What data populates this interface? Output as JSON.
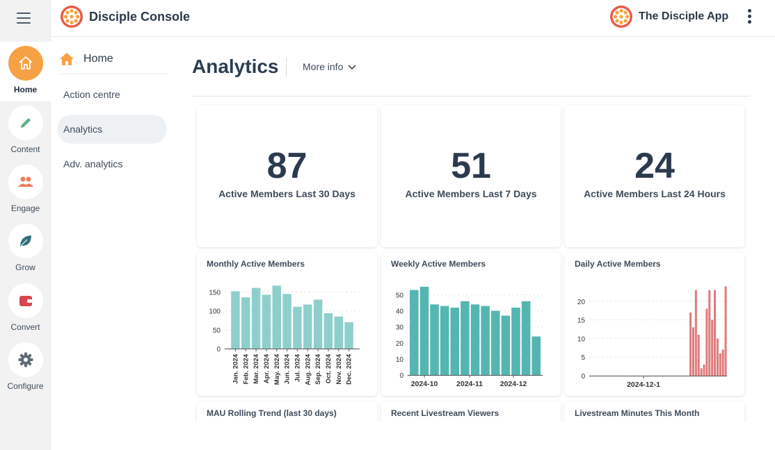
{
  "rail": {
    "items": [
      {
        "label": "Home",
        "icon": "home-icon"
      },
      {
        "label": "Content",
        "icon": "pencil-icon"
      },
      {
        "label": "Engage",
        "icon": "people-icon"
      },
      {
        "label": "Grow",
        "icon": "leaf-icon"
      },
      {
        "label": "Convert",
        "icon": "wallet-icon"
      },
      {
        "label": "Configure",
        "icon": "gear-icon"
      }
    ]
  },
  "header": {
    "console_title": "Disciple Console",
    "app_title": "The Disciple App"
  },
  "subnav": {
    "home_label": "Home",
    "items": [
      "Action centre",
      "Analytics",
      "Adv. analytics"
    ]
  },
  "page": {
    "title": "Analytics",
    "more_info_label": "More info"
  },
  "kpis": [
    {
      "value": "87",
      "label": "Active Members Last 30 Days"
    },
    {
      "value": "51",
      "label": "Active Members Last 7 Days"
    },
    {
      "value": "24",
      "label": "Active Members Last 24 Hours"
    }
  ],
  "bottom_cards": {
    "titles": [
      "MAU Rolling Trend (last 30 days)",
      "Recent Livestream Viewers",
      "Livestream Minutes This Month"
    ]
  },
  "colors": {
    "accent_orange": "#f6a144",
    "mau_bar": "#8ecfcc",
    "wau_bar": "#55b5b1",
    "dau_bar": "#e07b7c"
  },
  "chart_data": [
    {
      "type": "bar",
      "title": "Monthly Active Members",
      "categories": [
        "Jan. 2024",
        "Feb. 2024",
        "Mar. 2024",
        "Apr. 2024",
        "May. 2024",
        "Jun. 2024",
        "Jul. 2024",
        "Aug. 2024",
        "Sep. 2024",
        "Oct. 2024",
        "Nov. 2024",
        "Dec. 2024"
      ],
      "values": [
        152,
        136,
        161,
        143,
        167,
        145,
        111,
        117,
        130,
        94,
        85,
        70
      ],
      "ylim": [
        0,
        175
      ],
      "yticks": [
        0,
        50,
        100,
        150
      ]
    },
    {
      "type": "bar",
      "title": "Weekly Active Members",
      "x_tick_labels": [
        "2024-10",
        "2024-11",
        "2024-12"
      ],
      "values": [
        53,
        55,
        44,
        43,
        42,
        46,
        44,
        43,
        40,
        37,
        42,
        46,
        24
      ],
      "ylim": [
        0,
        58
      ],
      "yticks": [
        0,
        10,
        20,
        30,
        40,
        50
      ]
    },
    {
      "type": "bar",
      "title": "Daily Active Members",
      "x_tick_labels": [
        "2024-12-1"
      ],
      "values": [
        0,
        0,
        0,
        0,
        0,
        0,
        0,
        0,
        0,
        0,
        0,
        0,
        0,
        0,
        0,
        0,
        0,
        0,
        0,
        0,
        0,
        0,
        0,
        0,
        0,
        0,
        0,
        0,
        0,
        0,
        0,
        0,
        0,
        0,
        0,
        0,
        0,
        17,
        13,
        23,
        11,
        2,
        3,
        18,
        23,
        15,
        23,
        10,
        6,
        7,
        24
      ],
      "ylim": [
        0,
        25
      ],
      "yticks": [
        0,
        5,
        10,
        15,
        20
      ]
    }
  ]
}
